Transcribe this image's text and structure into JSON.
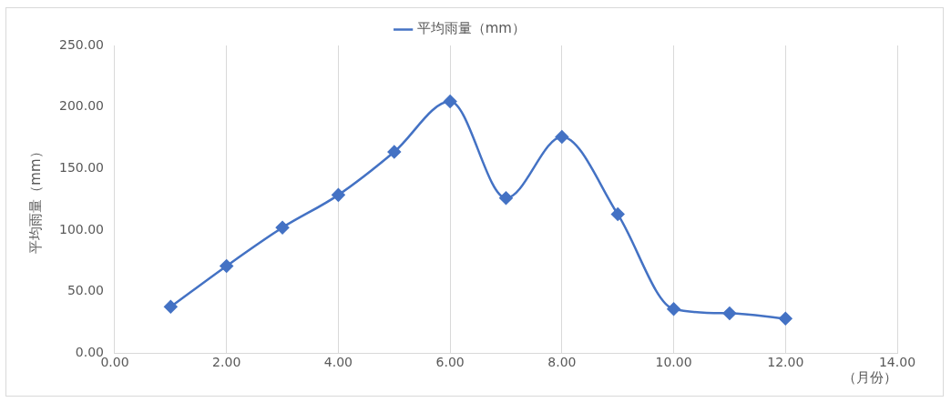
{
  "chart_data": {
    "type": "line",
    "xlabel": "（月份）",
    "ylabel": "平均雨量（mm）",
    "legend": "top",
    "grid": "x",
    "marker": "diamond",
    "line_style": "solid",
    "x": [
      1,
      2,
      3,
      4,
      5,
      6,
      7,
      8,
      9,
      10,
      11,
      12
    ],
    "series": [
      {
        "name": "平均雨量（mm）",
        "color": "#4472c4",
        "values": [
          37.6,
          70.8,
          102,
          128.5,
          163.5,
          204.5,
          126,
          175.7,
          112.8,
          35.8,
          32.3,
          28
        ]
      }
    ],
    "xlim": [
      0,
      14
    ],
    "ylim": [
      0,
      250
    ],
    "xticks": [
      {
        "value": 0,
        "label": "0.00"
      },
      {
        "value": 2,
        "label": "2.00"
      },
      {
        "value": 4,
        "label": "4.00"
      },
      {
        "value": 6,
        "label": "6.00"
      },
      {
        "value": 8,
        "label": "8.00"
      },
      {
        "value": 10,
        "label": "10.00"
      },
      {
        "value": 12,
        "label": "12.00"
      },
      {
        "value": 14,
        "label": "14.00"
      }
    ],
    "yticks": [
      {
        "value": 0,
        "label": "0.00"
      },
      {
        "value": 50,
        "label": "50.00"
      },
      {
        "value": 100,
        "label": "100.00"
      },
      {
        "value": 150,
        "label": "150.00"
      },
      {
        "value": 200,
        "label": "200.00"
      },
      {
        "value": 250,
        "label": "250.00"
      }
    ]
  }
}
